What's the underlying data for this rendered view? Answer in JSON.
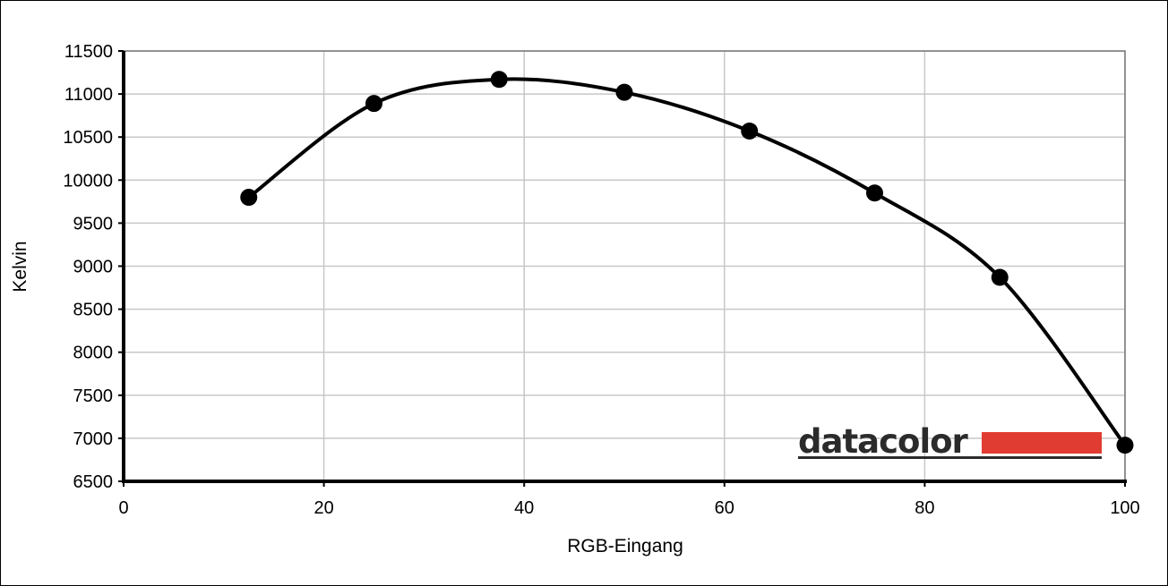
{
  "chart_data": {
    "type": "line",
    "title": "",
    "xlabel": "RGB-Eingang",
    "ylabel": "Kelvin",
    "xlim": [
      0,
      100
    ],
    "ylim": [
      6500,
      11500
    ],
    "x_ticks": [
      0,
      20,
      40,
      60,
      80,
      100
    ],
    "y_ticks": [
      6500,
      7000,
      7500,
      8000,
      8500,
      9000,
      9500,
      10000,
      10500,
      11000,
      11500
    ],
    "grid": true,
    "smooth": true,
    "series": [
      {
        "x": [
          12.5,
          25,
          37.5,
          50,
          62.5,
          75,
          87.5,
          100
        ],
        "y": [
          9800,
          10890,
          11170,
          11020,
          10570,
          9850,
          8870,
          6920
        ]
      }
    ]
  },
  "logo": {
    "text": "datacolor",
    "text_color": "#2b2b2b",
    "bar_color": "#e03c31"
  }
}
